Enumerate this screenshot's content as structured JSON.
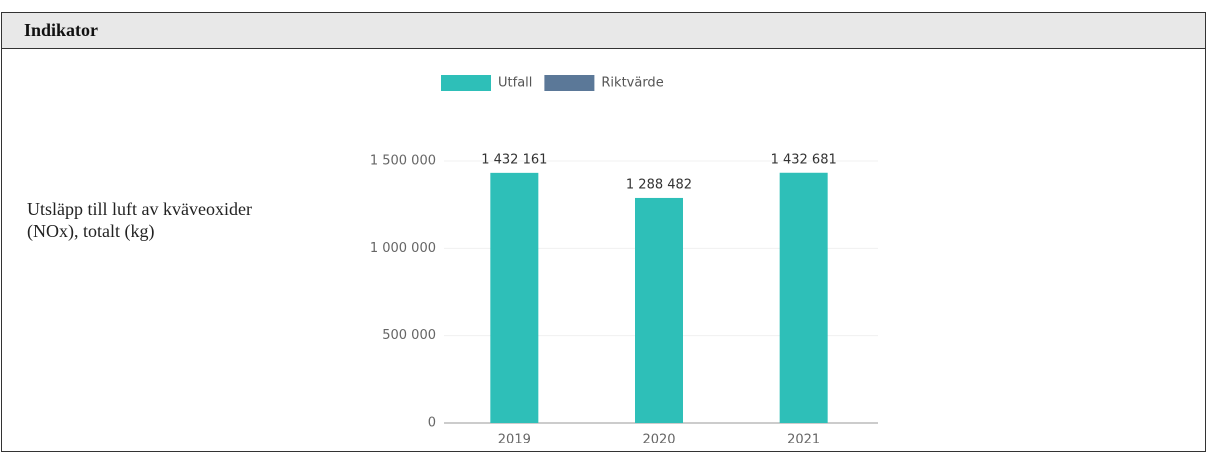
{
  "header": {
    "title": "Indikator"
  },
  "row": {
    "label": "Utsläpp till luft av kväveoxider (NOx), totalt (kg)"
  },
  "chart_data": {
    "type": "bar",
    "categories": [
      "2019",
      "2020",
      "2021"
    ],
    "series": [
      {
        "name": "Utfall",
        "color": "#2ebfb8",
        "values": [
          1432161,
          1288482,
          1432681
        ],
        "value_labels": [
          "1 432 161",
          "1 288 482",
          "1 432 681"
        ]
      },
      {
        "name": "Riktvärde",
        "color": "#5b7898",
        "values": [
          null,
          null,
          null
        ]
      }
    ],
    "ylim": [
      0,
      1500000
    ],
    "yticks": [
      0,
      {
        "value": 500000,
        "label": "500 000"
      },
      {
        "value": 1000000,
        "label": "1 000 000"
      },
      {
        "value": 1500000,
        "label": "1 500 000"
      }
    ],
    "grid": true
  }
}
